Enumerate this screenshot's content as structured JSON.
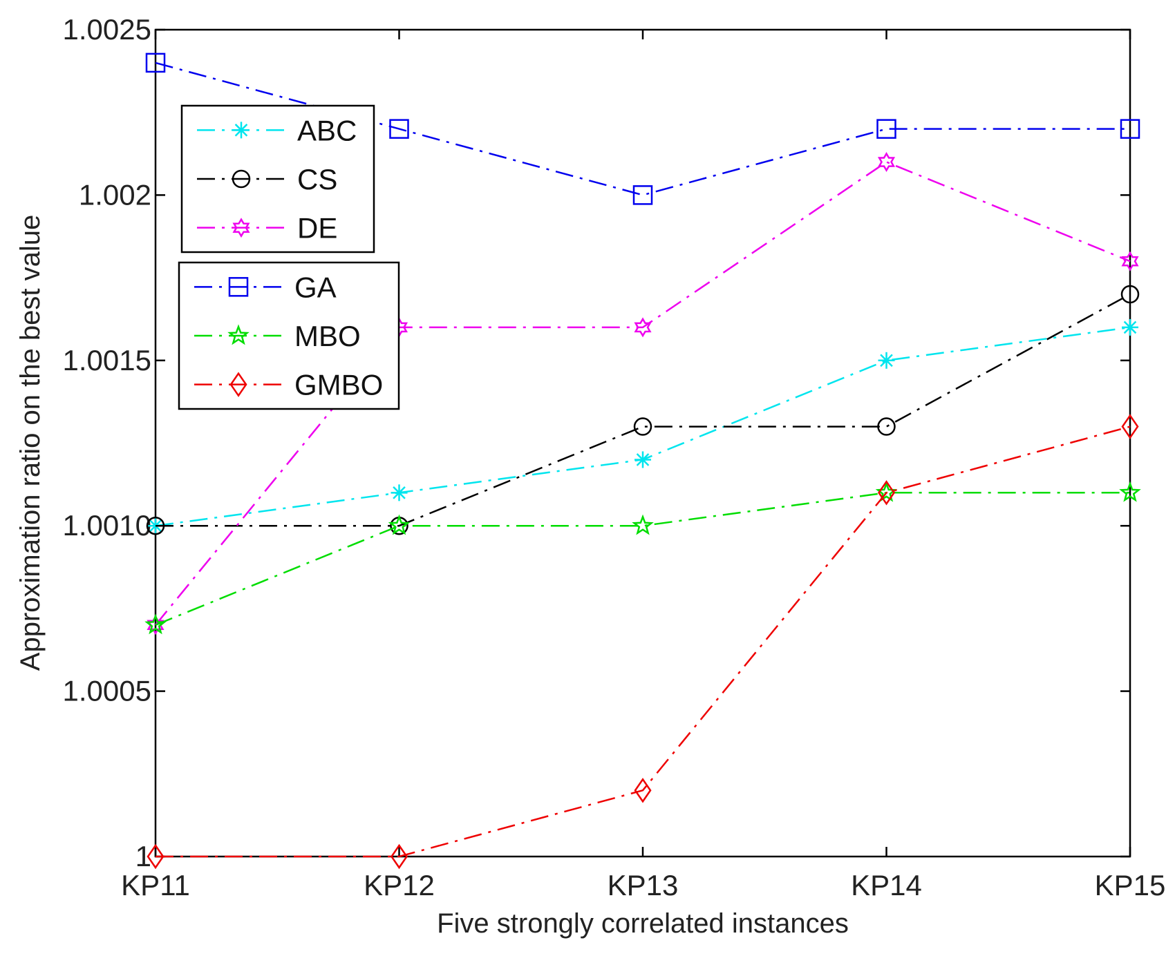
{
  "chart_data": {
    "type": "line",
    "title": "",
    "xlabel": "Five strongly correlated instances",
    "ylabel": "Approximation ratio on the best value",
    "categories": [
      "KP11",
      "KP12",
      "KP13",
      "KP14",
      "KP15"
    ],
    "ylim": [
      1,
      1.0025
    ],
    "yticks": [
      1,
      1.0005,
      1.001,
      1.0015,
      1.002,
      1.0025
    ],
    "ytick_labels": [
      "1",
      "1.0005",
      "1.0010",
      "1.0015",
      "1.002",
      "1.0025"
    ],
    "grid": false,
    "series": [
      {
        "name": "ABC",
        "color": "#00e5ee",
        "marker": "star",
        "values": [
          1.001,
          1.0011,
          1.0012,
          1.0015,
          1.0016
        ]
      },
      {
        "name": "CS",
        "color": "#000000",
        "marker": "circle",
        "values": [
          1.001,
          1.001,
          1.0013,
          1.0013,
          1.0017
        ]
      },
      {
        "name": "DE",
        "color": "#ee00ee",
        "marker": "hexagram",
        "values": [
          1.0007,
          1.0016,
          1.0016,
          1.0021,
          1.0018
        ]
      },
      {
        "name": "GA",
        "color": "#0000ee",
        "marker": "square",
        "values": [
          1.0024,
          1.0022,
          1.002,
          1.0022,
          1.0022
        ]
      },
      {
        "name": "MBO",
        "color": "#00dd00",
        "marker": "pentagram",
        "values": [
          1.0007,
          1.001,
          1.001,
          1.0011,
          1.0011
        ]
      },
      {
        "name": "GMBO",
        "color": "#ee0000",
        "marker": "diamond",
        "values": [
          1,
          1,
          1.0002,
          1.0011,
          1.0013
        ]
      }
    ],
    "legends": [
      {
        "placement": "upper-left",
        "entries": [
          "ABC",
          "CS",
          "DE"
        ]
      },
      {
        "placement": "middle-left",
        "entries": [
          "GA",
          "MBO",
          "GMBO"
        ]
      }
    ]
  }
}
